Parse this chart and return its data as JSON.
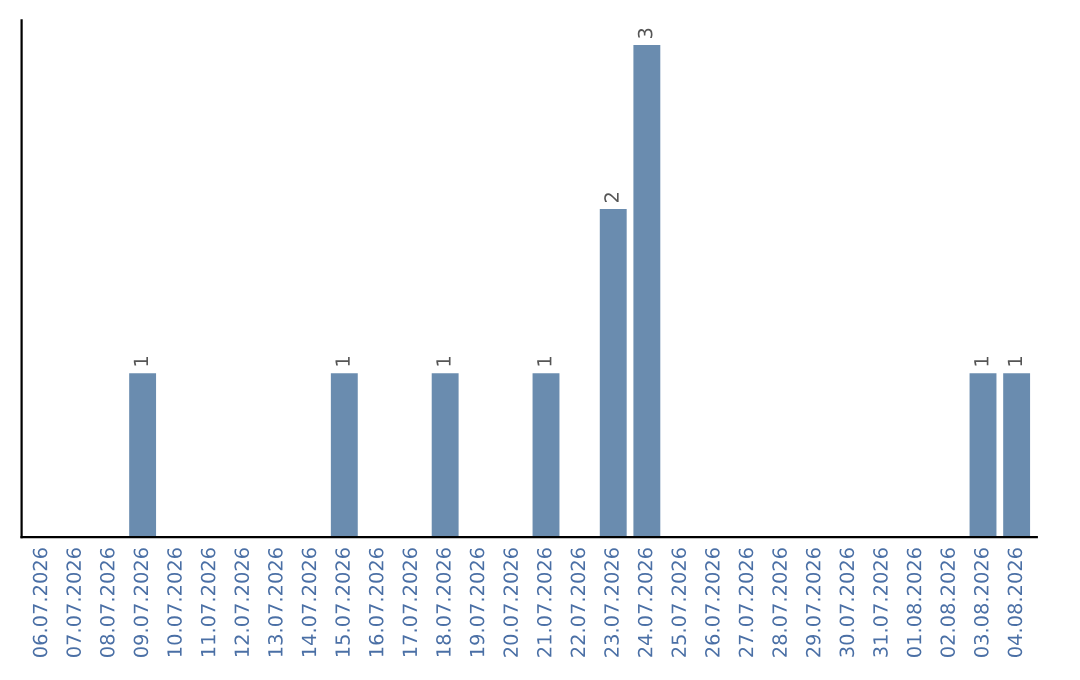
{
  "chart_data": {
    "type": "bar",
    "categories": [
      "06.07.2026",
      "07.07.2026",
      "08.07.2026",
      "09.07.2026",
      "10.07.2026",
      "11.07.2026",
      "12.07.2026",
      "13.07.2026",
      "14.07.2026",
      "15.07.2026",
      "16.07.2026",
      "17.07.2026",
      "18.07.2026",
      "19.07.2026",
      "20.07.2026",
      "21.07.2026",
      "22.07.2026",
      "23.07.2026",
      "24.07.2026",
      "25.07.2026",
      "26.07.2026",
      "27.07.2026",
      "28.07.2026",
      "29.07.2026",
      "30.07.2026",
      "31.07.2026",
      "01.08.2026",
      "02.08.2026",
      "03.08.2026",
      "04.08.2026"
    ],
    "values": [
      0,
      0,
      0,
      1,
      0,
      0,
      0,
      0,
      0,
      1,
      0,
      0,
      1,
      0,
      0,
      1,
      0,
      2,
      3,
      0,
      0,
      0,
      0,
      0,
      0,
      0,
      0,
      0,
      1,
      1
    ],
    "value_labels": [
      null,
      null,
      null,
      "1",
      null,
      null,
      null,
      null,
      null,
      "1",
      null,
      null,
      "1",
      null,
      null,
      "1",
      null,
      "2",
      "3",
      null,
      null,
      null,
      null,
      null,
      null,
      null,
      null,
      null,
      "1",
      "1"
    ],
    "color": "#6a8caf",
    "grid": false,
    "legend": false
  }
}
